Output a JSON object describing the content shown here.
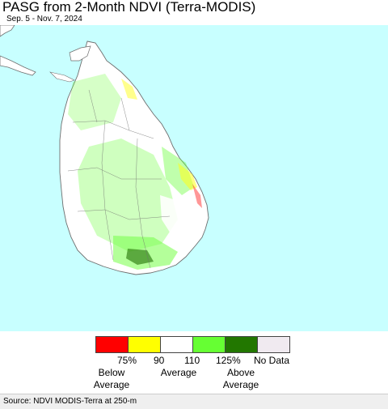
{
  "header": {
    "title": "PASG from 2-Month NDVI (Terra-MODIS)",
    "date_range": "Sep. 5 - Nov. 7, 2024"
  },
  "map": {
    "region": "Sri Lanka",
    "ocean_color": "#c8ffff",
    "land_color": "#ffffff",
    "boundary_color": "#6e6e6e"
  },
  "legend": {
    "swatches": [
      {
        "color": "#ff0000"
      },
      {
        "color": "#ffff00"
      },
      {
        "color": "#ffffff"
      },
      {
        "color": "#66ff33"
      },
      {
        "color": "#227700"
      },
      {
        "color": "#f0eaf0"
      }
    ],
    "ticks": [
      "75%",
      "90",
      "110",
      "125%",
      "No Data"
    ],
    "categories": {
      "below": "Below\nAverage",
      "average": "Average",
      "above": "Above\nAverage"
    }
  },
  "footer": {
    "source": "Source: NDVI MODIS-Terra at 250-m"
  }
}
